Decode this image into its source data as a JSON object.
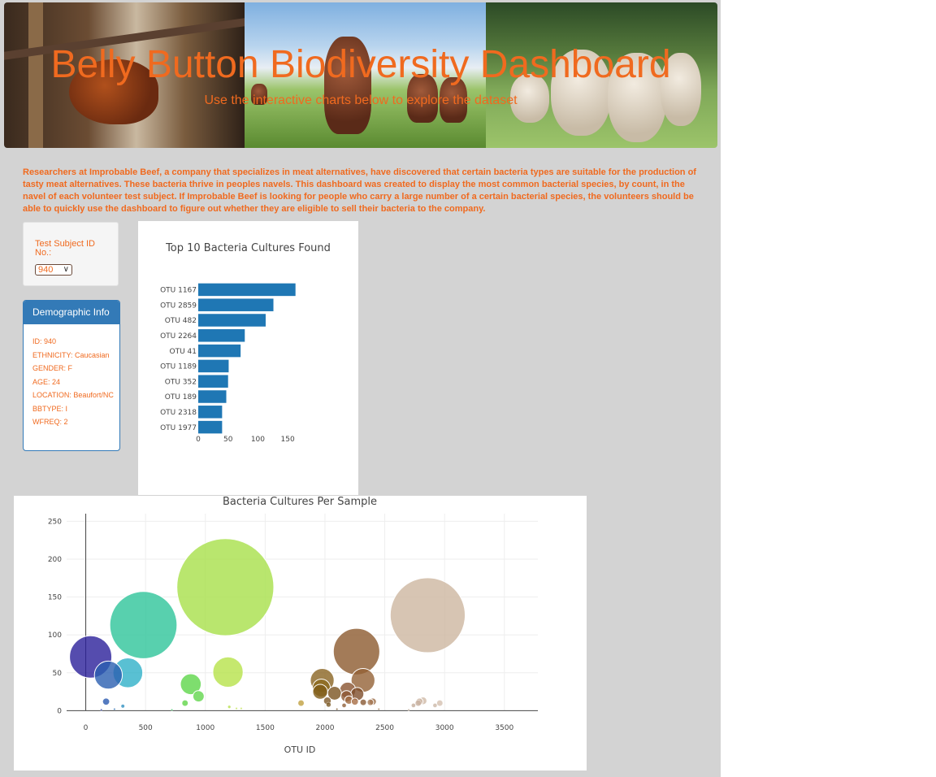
{
  "header": {
    "title": "Belly Button Biodiversity Dashboard",
    "subtitle": "Use the interactive charts below to explore the dataset"
  },
  "intro": "Researchers at Improbable Beef, a company that specializes in meat alternatives, have discovered that certain bacteria types are suitable for the production of tasty meat alternatives. These bacteria thrive in peoples navels. This dashboard was created to display the most common bacterial species, by count, in the navel of each volunteer test subject. If Improbable Beef is looking for people who carry a large number of a certain bacterial species, the volunteers should be able to quickly use the dashboard to figure out whether they are eligible to sell their bacteria to the company.",
  "selector": {
    "label": "Test Subject ID No.:",
    "selected": "940"
  },
  "demographics": {
    "heading": "Demographic Info",
    "rows": [
      "ID: 940",
      "ETHNICITY: Caucasian",
      "GENDER: F",
      "AGE: 24",
      "LOCATION: Beaufort/NC",
      "BBTYPE: I",
      "WFREQ: 2"
    ]
  },
  "colors": {
    "accent": "#f06a1f",
    "panel_blue": "#337ab7",
    "bar": "#1f77b4",
    "page_bg": "#d3d3d3"
  },
  "chart_data": [
    {
      "type": "bar",
      "orientation": "horizontal",
      "title": "Top 10 Bacteria Cultures Found",
      "categories": [
        "OTU 1167",
        "OTU 2859",
        "OTU 482",
        "OTU 2264",
        "OTU 41",
        "OTU 1189",
        "OTU 352",
        "OTU 189",
        "OTU 2318",
        "OTU 1977"
      ],
      "values": [
        163,
        126,
        113,
        78,
        71,
        51,
        50,
        47,
        40,
        40
      ],
      "xticks": [
        0,
        50,
        100,
        150
      ],
      "xlim": [
        0,
        171.6
      ],
      "grid": false
    },
    {
      "type": "scatter",
      "subtype": "bubble",
      "title": "Bacteria Cultures Per Sample",
      "xlabel": "OTU ID",
      "ylabel": "",
      "xlim": [
        -160,
        3780
      ],
      "ylim": [
        -6,
        260
      ],
      "xticks": [
        0,
        500,
        1000,
        1500,
        2000,
        2500,
        3000,
        3500
      ],
      "yticks": [
        0,
        50,
        100,
        150,
        200,
        250
      ],
      "grid": true,
      "points": [
        {
          "x": 41,
          "y": 71,
          "color": "#2b1f9a"
        },
        {
          "x": 189,
          "y": 47,
          "color": "#2a5fb0"
        },
        {
          "x": 352,
          "y": 50,
          "color": "#2fb0c8"
        },
        {
          "x": 482,
          "y": 113,
          "color": "#2ec49a"
        },
        {
          "x": 1167,
          "y": 163,
          "color": "#a8e04a"
        },
        {
          "x": 1189,
          "y": 51,
          "color": "#b6e24a"
        },
        {
          "x": 878,
          "y": 35,
          "color": "#5ed64a"
        },
        {
          "x": 943,
          "y": 19,
          "color": "#62d64c"
        },
        {
          "x": 2859,
          "y": 126,
          "color": "#cdb6a0"
        },
        {
          "x": 2264,
          "y": 78,
          "color": "#8c5a2e"
        },
        {
          "x": 2318,
          "y": 40,
          "color": "#936236"
        },
        {
          "x": 1977,
          "y": 40,
          "color": "#8a6422"
        },
        {
          "x": 1970,
          "y": 30,
          "color": "#8c6a1e"
        },
        {
          "x": 1960,
          "y": 25,
          "color": "#805c18"
        },
        {
          "x": 2080,
          "y": 23,
          "color": "#7a5420"
        },
        {
          "x": 2190,
          "y": 27,
          "color": "#8a5430"
        },
        {
          "x": 2270,
          "y": 22,
          "color": "#7e4e2a"
        },
        {
          "x": 2180,
          "y": 19,
          "color": "#8e5a36"
        },
        {
          "x": 2200,
          "y": 14,
          "color": "#a06a40"
        },
        {
          "x": 2250,
          "y": 12,
          "color": "#a86e46"
        },
        {
          "x": 2020,
          "y": 13,
          "color": "#805a28"
        },
        {
          "x": 2320,
          "y": 11,
          "color": "#8a5a34"
        },
        {
          "x": 2400,
          "y": 12,
          "color": "#9a6a44"
        },
        {
          "x": 2380,
          "y": 11,
          "color": "#a87a56"
        },
        {
          "x": 2030,
          "y": 8,
          "color": "#7a5a26"
        },
        {
          "x": 2160,
          "y": 7,
          "color": "#90603a"
        },
        {
          "x": 1800,
          "y": 10,
          "color": "#c0a040"
        },
        {
          "x": 2780,
          "y": 10,
          "color": "#c8b0a0"
        },
        {
          "x": 2820,
          "y": 13,
          "color": "#d0baa8"
        },
        {
          "x": 2790,
          "y": 12,
          "color": "#cdb6a4"
        },
        {
          "x": 2740,
          "y": 7,
          "color": "#c4ae9c"
        },
        {
          "x": 2960,
          "y": 10,
          "color": "#d4c0b0"
        },
        {
          "x": 2920,
          "y": 7,
          "color": "#ccb8a8"
        },
        {
          "x": 170,
          "y": 12,
          "color": "#2a5ab0"
        },
        {
          "x": 310,
          "y": 6,
          "color": "#3090c0"
        },
        {
          "x": 830,
          "y": 10,
          "color": "#60d448"
        },
        {
          "x": 1200,
          "y": 5,
          "color": "#b8e04c"
        },
        {
          "x": 1260,
          "y": 3,
          "color": "#bee250"
        },
        {
          "x": 1300,
          "y": 3,
          "color": "#c2e254"
        },
        {
          "x": 130,
          "y": 1,
          "color": "#2f40a8"
        },
        {
          "x": 240,
          "y": 2,
          "color": "#2c70b4"
        },
        {
          "x": 720,
          "y": 1,
          "color": "#4ac870"
        },
        {
          "x": 2100,
          "y": 2,
          "color": "#7a5628"
        },
        {
          "x": 2450,
          "y": 2,
          "color": "#a07a5a"
        },
        {
          "x": 2700,
          "y": 1,
          "color": "#c0aa98"
        }
      ]
    }
  ]
}
